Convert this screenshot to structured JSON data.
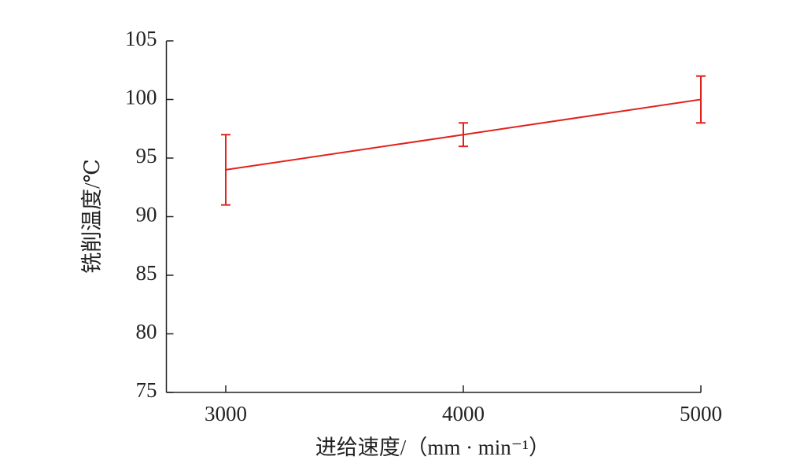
{
  "chart_data": {
    "type": "line",
    "x": [
      3000,
      4000,
      5000
    ],
    "series": [
      {
        "color": "#e0231c",
        "values": [
          94,
          97,
          100
        ],
        "errors": [
          3,
          1,
          2
        ]
      }
    ],
    "xlim": [
      2750,
      5000
    ],
    "xticks": [
      3000,
      4000,
      5000
    ],
    "ylim": [
      75,
      105
    ],
    "yticks": [
      75,
      80,
      85,
      90,
      95,
      100,
      105
    ],
    "xlabel": "进给速度/（mm · min⁻¹）",
    "ylabel": "铣削温度/℃"
  }
}
